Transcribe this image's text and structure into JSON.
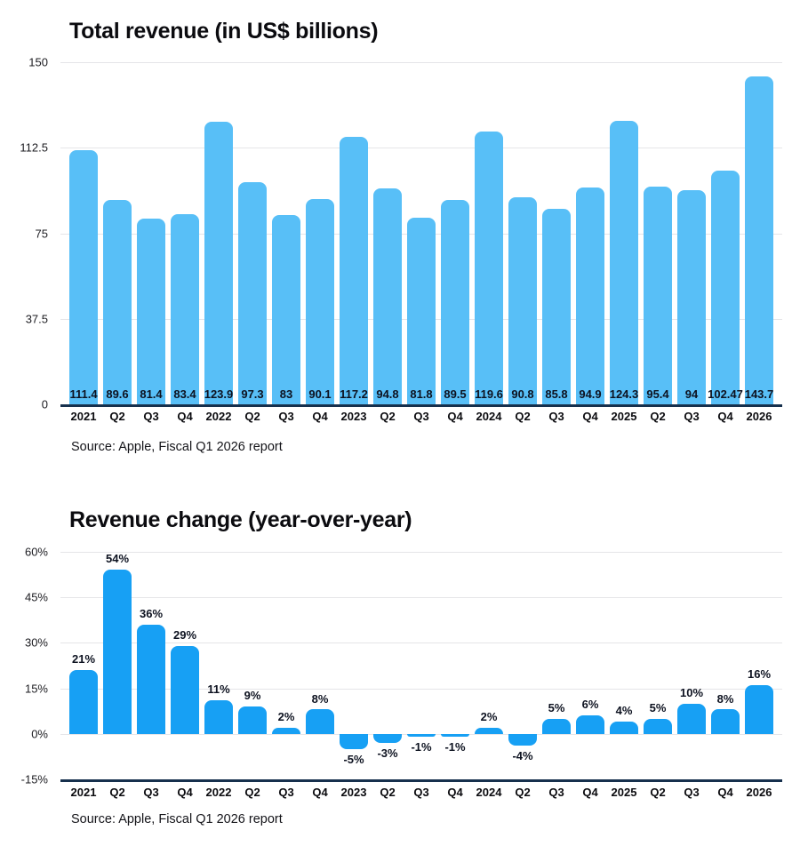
{
  "style": {
    "background": "#ffffff",
    "axis_color": "#16304d",
    "grid_color": "#e5e5e8",
    "text_color": "#0b0b0f"
  },
  "chart_data": [
    {
      "type": "bar",
      "title": "Total revenue (in US$ billions)",
      "source": "Source: Apple, Fiscal Q1 2026 report",
      "xlabel": "",
      "ylabel": "",
      "categories": [
        "2021",
        "Q2",
        "Q3",
        "Q4",
        "2022",
        "Q2",
        "Q3",
        "Q4",
        "2023",
        "Q2",
        "Q3",
        "Q4",
        "2024",
        "Q2",
        "Q3",
        "Q4",
        "2025",
        "Q2",
        "Q3",
        "Q4",
        "2026"
      ],
      "values": [
        111.4,
        89.6,
        81.4,
        83.4,
        123.9,
        97.3,
        83,
        90.1,
        117.2,
        94.8,
        81.8,
        89.5,
        119.6,
        90.8,
        85.8,
        94.9,
        124.3,
        95.4,
        94,
        102.47,
        143.7
      ],
      "value_labels": [
        "111.4",
        "89.6",
        "81.4",
        "83.4",
        "123.9",
        "97.3",
        "83",
        "90.1",
        "117.2",
        "94.8",
        "81.8",
        "89.5",
        "119.6",
        "90.8",
        "85.8",
        "94.9",
        "124.3",
        "95.4",
        "94",
        "102.47",
        "143.7"
      ],
      "ylim": [
        0,
        150
      ],
      "yticks": [
        0,
        37.5,
        75,
        112.5,
        150
      ],
      "ytick_labels": [
        "0",
        "37.5",
        "75",
        "112.5",
        "150"
      ],
      "bar_color": "#58bff7",
      "grid": "on",
      "legend": "none",
      "label_position": "inside-base"
    },
    {
      "type": "bar",
      "title": "Revenue change (year-over-year)",
      "source": "Source: Apple, Fiscal Q1 2026 report",
      "xlabel": "",
      "ylabel": "",
      "categories": [
        "2021",
        "Q2",
        "Q3",
        "Q4",
        "2022",
        "Q2",
        "Q3",
        "Q4",
        "2023",
        "Q2",
        "Q3",
        "Q4",
        "2024",
        "Q2",
        "Q3",
        "Q4",
        "2025",
        "Q2",
        "Q3",
        "Q4",
        "2026"
      ],
      "values": [
        21,
        54,
        36,
        29,
        11,
        9,
        2,
        8,
        -5,
        -3,
        -1,
        -1,
        2,
        -4,
        5,
        6,
        4,
        5,
        10,
        8,
        16
      ],
      "value_labels": [
        "21%",
        "54%",
        "36%",
        "29%",
        "11%",
        "9%",
        "2%",
        "8%",
        "-5%",
        "-3%",
        "-1%",
        "-1%",
        "2%",
        "-4%",
        "5%",
        "6%",
        "4%",
        "5%",
        "10%",
        "8%",
        "16%"
      ],
      "ylim": [
        -15,
        60
      ],
      "yticks": [
        -15,
        0,
        15,
        30,
        45,
        60
      ],
      "ytick_labels": [
        "-15%",
        "0%",
        "15%",
        "30%",
        "45%",
        "60%"
      ],
      "bar_color": "#17a0f4",
      "grid": "on",
      "legend": "none",
      "label_position": "outside-end"
    }
  ]
}
